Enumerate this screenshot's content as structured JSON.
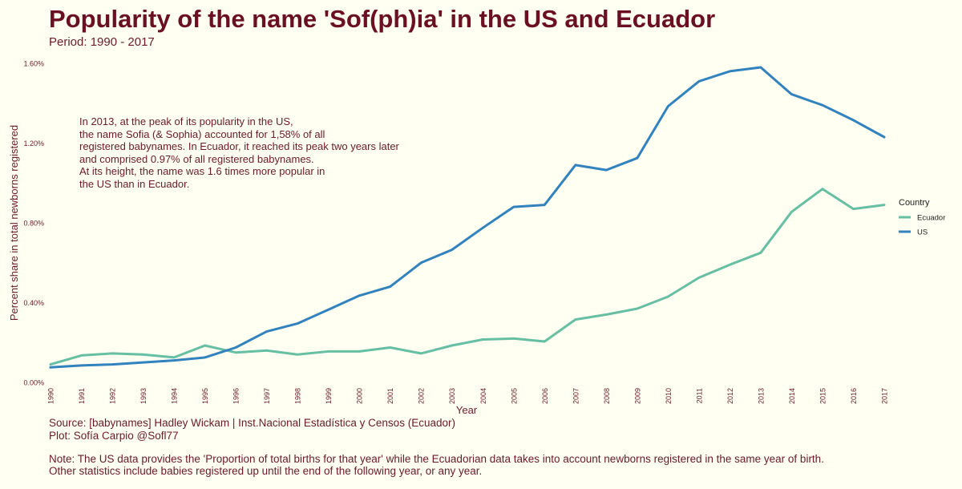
{
  "header": {
    "title": "Popularity of the name 'Sof(ph)ia' in the US and Ecuador",
    "subtitle": "Period: 1990 - 2017"
  },
  "annotation": {
    "lines": [
      "In 2013, at the peak of its popularity in the US,",
      "the name Sofia (& Sophia) accounted for 1,58% of all",
      "registered babynames. In Ecuador, it reached its peak two years later",
      "and comprised 0.97% of all registered babynames.",
      "At its height, the name was 1.6 times more popular in",
      "the US than in Ecuador."
    ]
  },
  "footer": {
    "source": "Source: [babynames] Hadley Wickam | Inst.Nacional Estadística y Censos (Ecuador)",
    "plot": "Plot: Sofía Carpio @Sofl77",
    "note1": "Note: The US data provides the 'Proportion of total births for that year' while the Ecuadorian data takes into account newborns registered in the same year of birth.",
    "note2": "Other statistics include babies registered up until the end of the following year, or any year."
  },
  "chart_data": {
    "type": "line",
    "title": "Popularity of the name 'Sof(ph)ia' in the US and Ecuador",
    "subtitle": "Period: 1990 - 2017",
    "xlabel": "Year",
    "ylabel": "Percent share in total newborns registered",
    "x": [
      1990,
      1991,
      1992,
      1993,
      1994,
      1995,
      1996,
      1997,
      1998,
      1999,
      2000,
      2001,
      2002,
      2003,
      2004,
      2005,
      2006,
      2007,
      2008,
      2009,
      2010,
      2011,
      2012,
      2013,
      2014,
      2015,
      2016,
      2017
    ],
    "ylim": [
      0,
      1.6
    ],
    "yticks": [
      0,
      0.4,
      0.8,
      1.2,
      1.6
    ],
    "ytick_labels": [
      "0.00%",
      "0.40%",
      "0.80%",
      "1.20%",
      "1.60%"
    ],
    "grid": false,
    "legend": {
      "title": "Country",
      "position": "right"
    },
    "series": [
      {
        "name": "Ecuador",
        "color": "#66bfa3",
        "values": [
          0.09,
          0.135,
          0.145,
          0.14,
          0.125,
          0.185,
          0.15,
          0.16,
          0.14,
          0.155,
          0.155,
          0.175,
          0.145,
          0.185,
          0.215,
          0.22,
          0.205,
          0.315,
          0.34,
          0.37,
          0.43,
          0.525,
          0.59,
          0.65,
          0.855,
          0.97,
          0.87,
          0.89
        ]
      },
      {
        "name": "US",
        "color": "#3182bd",
        "values": [
          0.075,
          0.085,
          0.09,
          0.1,
          0.11,
          0.125,
          0.175,
          0.255,
          0.295,
          0.365,
          0.435,
          0.48,
          0.6,
          0.665,
          0.775,
          0.88,
          0.89,
          1.09,
          1.065,
          1.125,
          1.385,
          1.51,
          1.56,
          1.58,
          1.445,
          1.39,
          1.315,
          1.23
        ]
      }
    ]
  }
}
